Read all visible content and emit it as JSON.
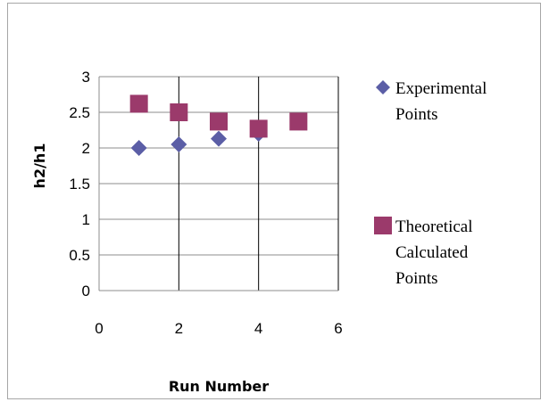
{
  "chart_data": {
    "type": "scatter",
    "title": "",
    "xlabel": "Run Number",
    "ylabel": "h2/h1",
    "xlim": [
      0,
      6
    ],
    "ylim": [
      0,
      3
    ],
    "x_ticks": [
      "0",
      "2",
      "4",
      "6"
    ],
    "y_ticks": [
      "0",
      "0.5",
      "1",
      "1.5",
      "2",
      "2.5",
      "3"
    ],
    "grid": "horizontal and vertical major gridlines",
    "legend_position": "right",
    "series": [
      {
        "name": "Experimental Points",
        "legend_lines": [
          "Experimental",
          "Points"
        ],
        "marker": "diamond",
        "color": "#5B5EA6",
        "x": [
          1,
          2,
          3,
          4
        ],
        "y": [
          2.0,
          2.05,
          2.13,
          2.2
        ]
      },
      {
        "name": "Theoretical Calculated Points",
        "legend_lines": [
          "Theoretical",
          "Calculated",
          "Points"
        ],
        "marker": "square",
        "color": "#9B3A6B",
        "x": [
          1,
          2,
          3,
          4,
          5
        ],
        "y": [
          2.62,
          2.5,
          2.37,
          2.27,
          2.37
        ]
      }
    ]
  }
}
